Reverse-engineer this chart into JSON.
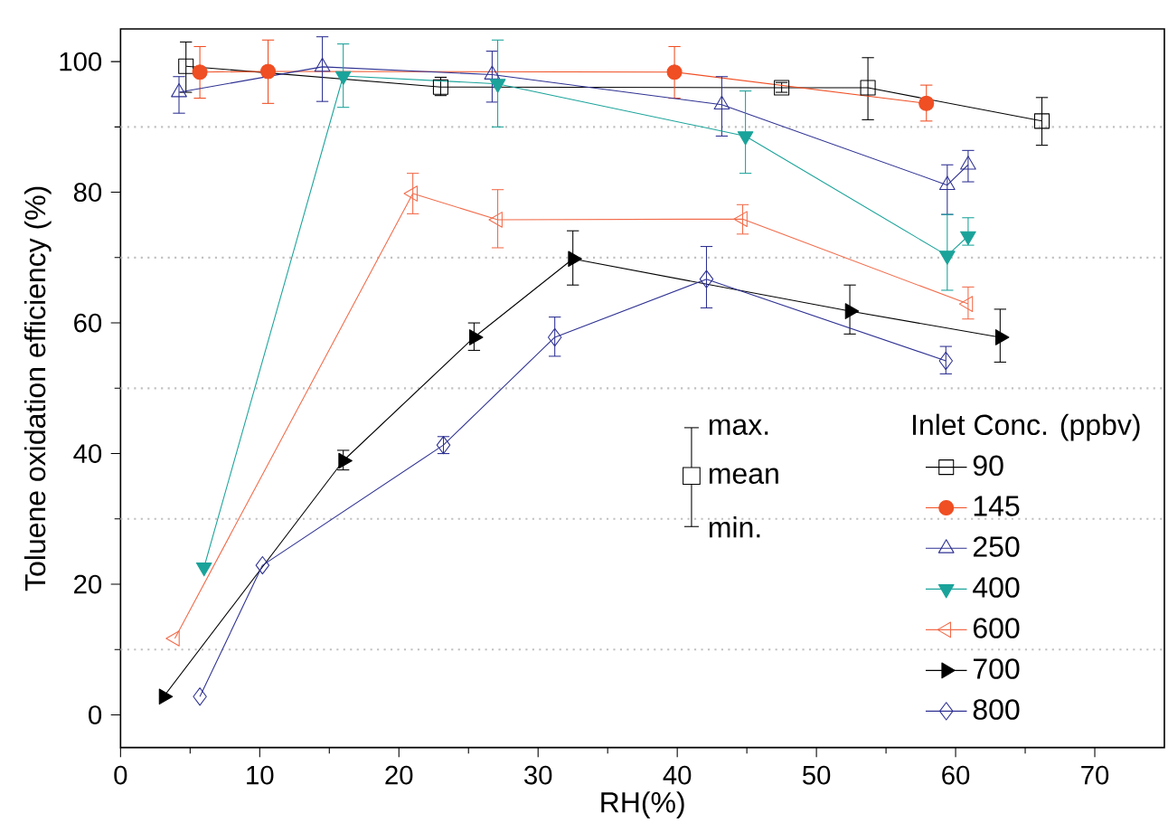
{
  "chart_data": {
    "type": "line",
    "xlabel": "RH(%)",
    "ylabel": "Toluene oxidation efficiency (%)",
    "legend_title": "Inlet Conc. (ppbv)",
    "legend": "bottom right",
    "xlim": [
      0,
      75
    ],
    "ylim": [
      -5,
      105
    ],
    "xticks": [
      0,
      10,
      20,
      30,
      40,
      50,
      60,
      70
    ],
    "yticks": [
      0,
      20,
      40,
      60,
      80,
      100
    ],
    "ref_lines": [
      {
        "axis": "y",
        "value": 10,
        "color": "#c0c0c0",
        "line_style": "dotted"
      },
      {
        "axis": "y",
        "value": 30,
        "color": "#c0c0c0",
        "line_style": "dotted"
      },
      {
        "axis": "y",
        "value": 50,
        "color": "#c0c0c0",
        "line_style": "dotted"
      },
      {
        "axis": "y",
        "value": 70,
        "color": "#c0c0c0",
        "line_style": "dotted"
      },
      {
        "axis": "y",
        "value": 90,
        "color": "#c0c0c0",
        "line_style": "dotted"
      }
    ],
    "annotations": [
      "max.",
      "mean",
      "min."
    ],
    "series": [
      {
        "name": "90",
        "color": "#000000",
        "marker": "square",
        "x": [
          4.7,
          23,
          47.5,
          53.7,
          66.2
        ],
        "values": [
          99.3,
          96.1,
          96,
          96,
          90.9
        ],
        "errors": [
          [
            95.3,
            103
          ],
          [
            94.8,
            97.6
          ],
          [
            95.3,
            96.8
          ],
          [
            91.1,
            100.6
          ],
          [
            87.2,
            94.5
          ]
        ]
      },
      {
        "name": "145",
        "color": "#f04e23",
        "marker": "circle-filled",
        "x": [
          5.7,
          10.6,
          39.8,
          57.9
        ],
        "values": [
          98.4,
          98.5,
          98.4,
          93.6
        ],
        "errors": [
          [
            94.4,
            102.3
          ],
          [
            93.6,
            103.3
          ],
          [
            94.4,
            102.3
          ],
          [
            90.9,
            96.4
          ]
        ]
      },
      {
        "name": "250",
        "color": "#2e3192",
        "marker": "triangle",
        "x": [
          4.2,
          14.5,
          26.7,
          43.2,
          59.4,
          60.9
        ],
        "values": [
          95.3,
          99.2,
          98,
          93.4,
          81.1,
          84.2
        ],
        "errors": [
          [
            92.1,
            97.7
          ],
          [
            93.9,
            103.8
          ],
          [
            93.8,
            101.6
          ],
          [
            88.6,
            97.7
          ],
          [
            76.6,
            84.2
          ],
          [
            81.6,
            86.4
          ]
        ]
      },
      {
        "name": "400",
        "color": "#1aa39a",
        "marker": "triangle-down-filled",
        "x": [
          6,
          16,
          27.1,
          44.9,
          59.4,
          60.9
        ],
        "values": [
          22.6,
          97.8,
          96.6,
          88.6,
          70.3,
          73.3
        ],
        "errors": [
          null,
          [
            93,
            102.7
          ],
          [
            90,
            103.3
          ],
          [
            82.9,
            95.5
          ],
          [
            65,
            76.6
          ],
          [
            71.9,
            76.1
          ]
        ]
      },
      {
        "name": "600",
        "color": "#f26b4a",
        "marker": "triangle-left",
        "x": [
          3.9,
          21,
          27.1,
          44.7,
          60.9
        ],
        "values": [
          11.7,
          79.8,
          75.8,
          75.9,
          62.9
        ],
        "errors": [
          null,
          [
            76.7,
            82.9
          ],
          [
            71.5,
            80.4
          ],
          [
            73.6,
            78.1
          ],
          [
            60.6,
            65.5
          ]
        ]
      },
      {
        "name": "700",
        "color": "#000000",
        "marker": "triangle-right-filled",
        "x": [
          3.1,
          16,
          25.4,
          32.5,
          52.4,
          63.2
        ],
        "values": [
          2.8,
          38.9,
          57.8,
          69.8,
          61.8,
          57.8
        ],
        "errors": [
          null,
          [
            37.5,
            40.5
          ],
          [
            55.8,
            60
          ],
          [
            65.8,
            74.1
          ],
          [
            58.3,
            65.8
          ],
          [
            54,
            62.1
          ]
        ]
      },
      {
        "name": "800",
        "color": "#2e3192",
        "marker": "diamond",
        "x": [
          5.7,
          10.2,
          23.2,
          31.2,
          42.1,
          59.3
        ],
        "values": [
          2.8,
          22.9,
          41.3,
          57.8,
          66.7,
          54.2
        ],
        "errors": [
          null,
          null,
          [
            40,
            42.6
          ],
          [
            54.9,
            60.9
          ],
          [
            62.3,
            71.7
          ],
          [
            52.2,
            56.4
          ]
        ]
      }
    ]
  }
}
